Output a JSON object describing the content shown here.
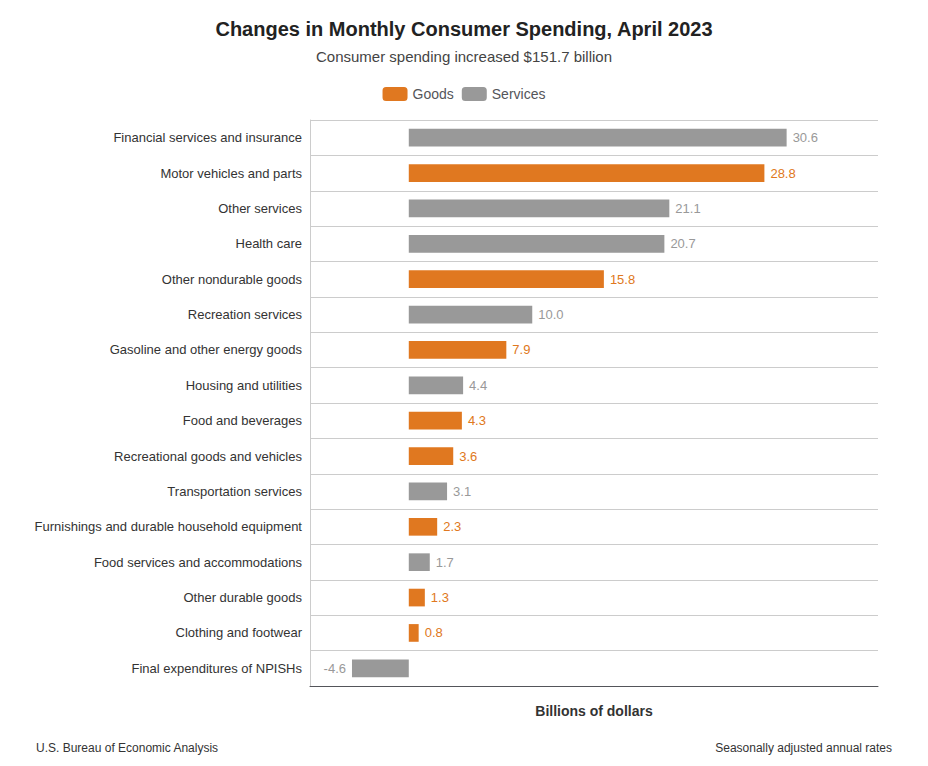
{
  "chart_data": {
    "type": "bar",
    "orientation": "horizontal",
    "title": "Changes in Monthly Consumer Spending, April 2023",
    "subtitle": "Consumer spending increased $151.7 billion",
    "xlabel": "Billions of dollars",
    "annotations": [
      "U.S. Bureau of Economic Analysis",
      "Seasonally adjusted annual rates"
    ],
    "categories": [
      "Financial services and insurance",
      "Motor vehicles and parts",
      "Other services",
      "Health care",
      "Other nondurable goods",
      "Recreation services",
      "Gasoline and other energy goods",
      "Housing and utilities",
      "Food and beverages",
      "Recreational goods and vehicles",
      "Transportation services",
      "Furnishings and durable household equipment",
      "Food services and accommodations",
      "Other durable goods",
      "Clothing and footwear",
      "Final expenditures of NPISHs"
    ],
    "series": [
      {
        "name": "Goods",
        "color": "#E07820",
        "values": [
          null,
          28.8,
          null,
          null,
          15.8,
          null,
          7.9,
          null,
          4.3,
          3.6,
          null,
          2.3,
          null,
          1.3,
          0.8,
          null
        ],
        "value_labels": [
          null,
          "28.8",
          null,
          null,
          "15.8",
          null,
          "7.9",
          null,
          "4.3",
          "3.6",
          null,
          "2.3",
          null,
          "1.3",
          "0.8",
          null
        ]
      },
      {
        "name": "Services",
        "color": "#999999",
        "values": [
          30.6,
          null,
          21.1,
          20.7,
          null,
          10.0,
          null,
          4.4,
          null,
          null,
          3.1,
          null,
          1.7,
          null,
          null,
          -4.6
        ],
        "value_labels": [
          "30.6",
          null,
          "21.1",
          "20.7",
          null,
          "10.0",
          null,
          "4.4",
          null,
          null,
          "3.1",
          null,
          "1.7",
          null,
          null,
          "-4.6"
        ]
      }
    ],
    "xlim": [
      -8,
      38
    ],
    "tick_labels": "y",
    "grid": true,
    "legend": "top",
    "data_labels": true
  }
}
